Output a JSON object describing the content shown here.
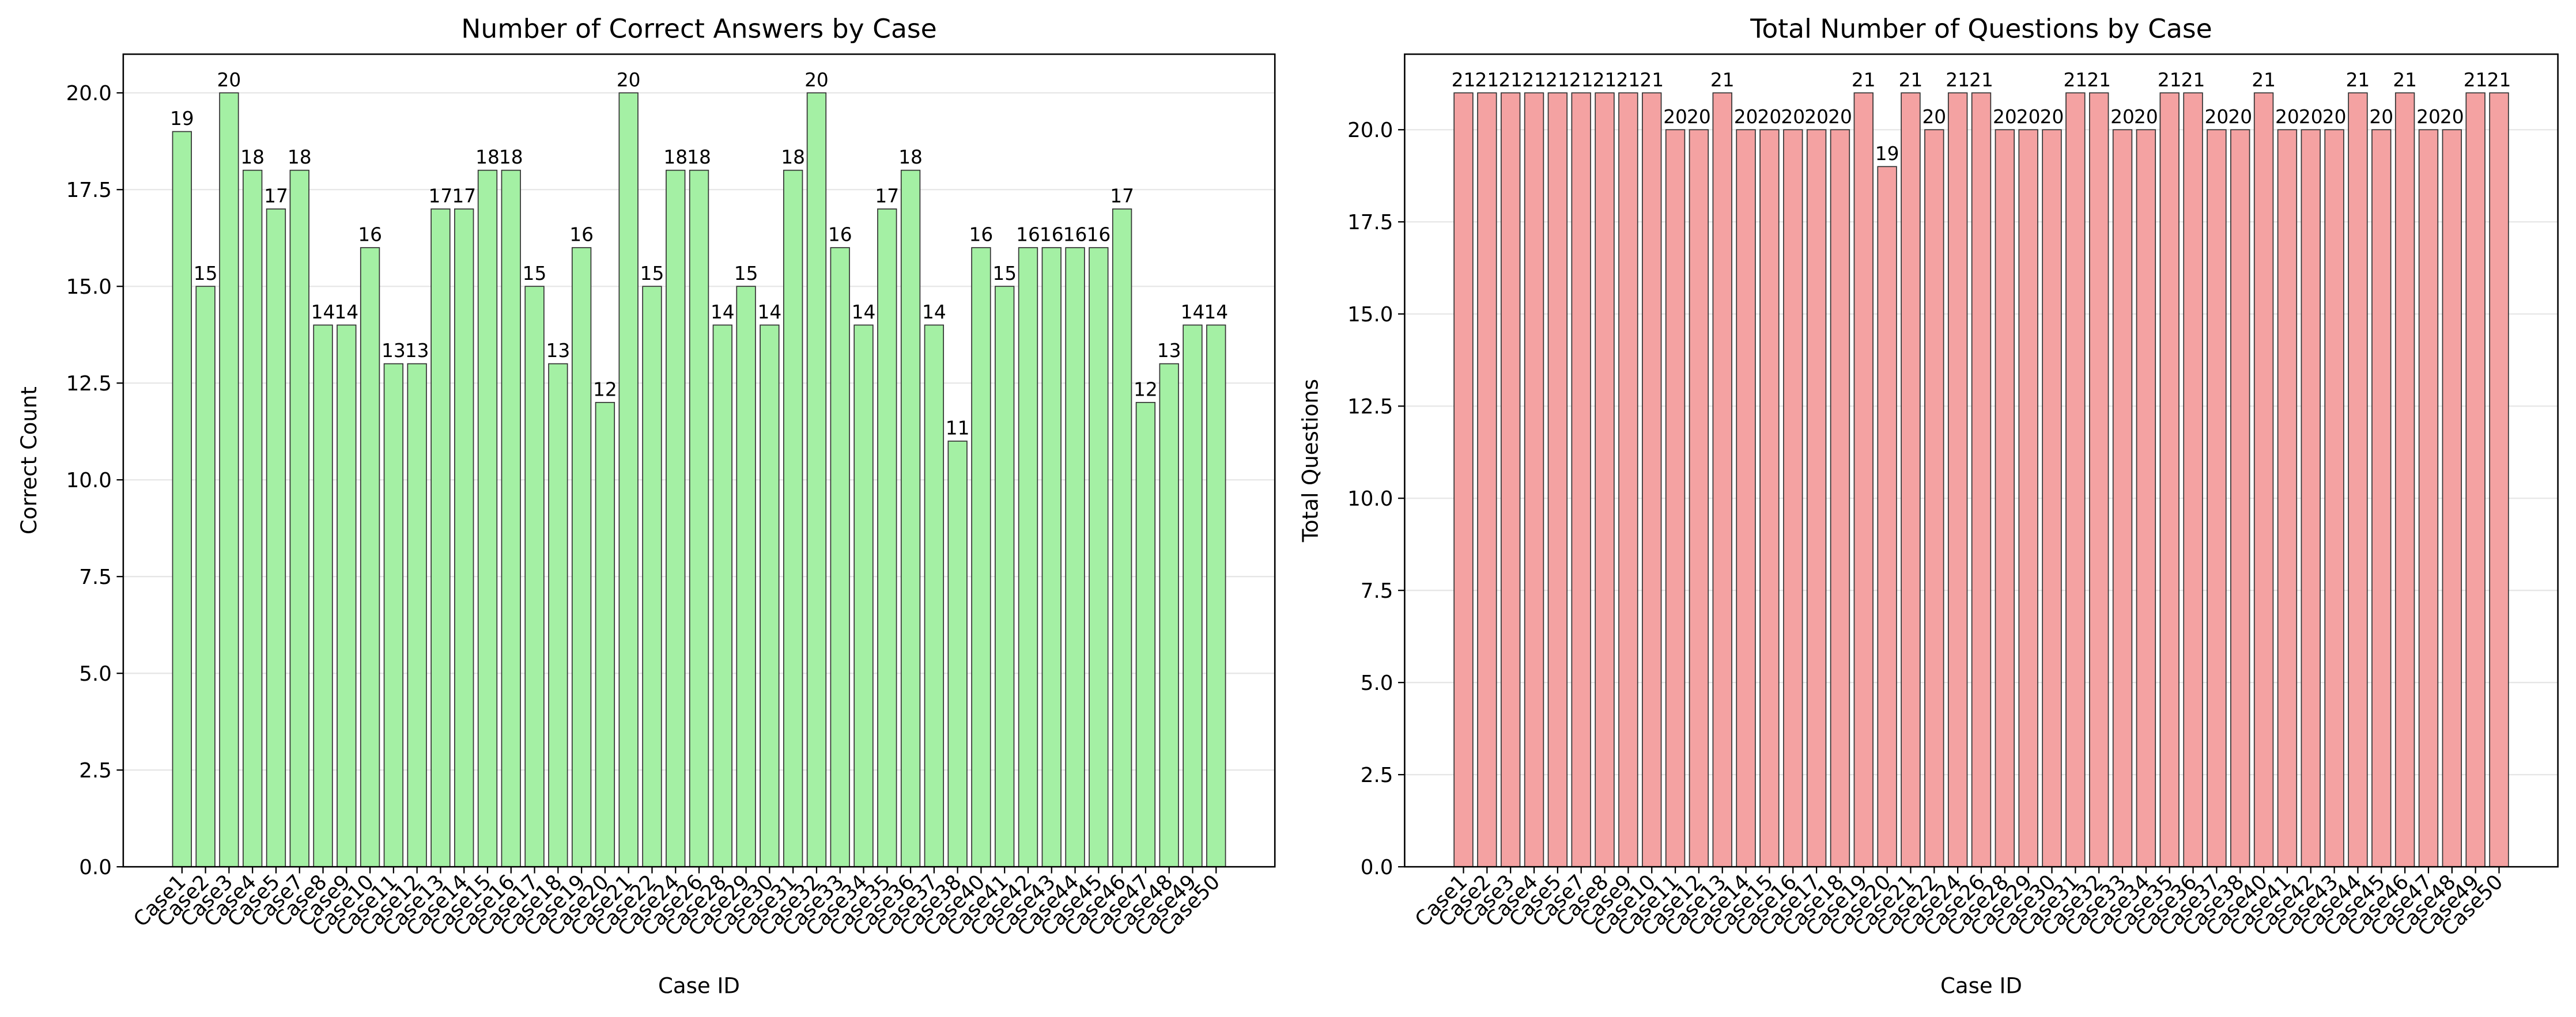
{
  "chart_data": [
    {
      "type": "bar",
      "title": "Number of Correct Answers by Case",
      "xlabel": "Case ID",
      "ylabel": "Correct Count",
      "categories": [
        "Case1",
        "Case2",
        "Case3",
        "Case4",
        "Case5",
        "Case7",
        "Case8",
        "Case9",
        "Case10",
        "Case11",
        "Case12",
        "Case13",
        "Case14",
        "Case15",
        "Case16",
        "Case17",
        "Case18",
        "Case19",
        "Case20",
        "Case21",
        "Case22",
        "Case24",
        "Case26",
        "Case28",
        "Case29",
        "Case30",
        "Case31",
        "Case32",
        "Case33",
        "Case34",
        "Case35",
        "Case36",
        "Case37",
        "Case38",
        "Case40",
        "Case41",
        "Case42",
        "Case43",
        "Case44",
        "Case45",
        "Case46",
        "Case47",
        "Case48",
        "Case49",
        "Case50"
      ],
      "values": [
        19,
        15,
        20,
        18,
        17,
        18,
        14,
        14,
        16,
        13,
        13,
        17,
        17,
        18,
        18,
        15,
        13,
        16,
        12,
        20,
        15,
        18,
        18,
        14,
        15,
        14,
        18,
        20,
        16,
        14,
        17,
        18,
        14,
        11,
        16,
        15,
        16,
        16,
        16,
        16,
        17,
        12,
        13,
        14,
        14
      ],
      "color": "#a4f0a4",
      "edgecolor": "#333333",
      "ylim": [
        0,
        21
      ],
      "yticks": [
        {
          "value": 0,
          "label": "0.0"
        },
        {
          "value": 2.5,
          "label": "2.5"
        },
        {
          "value": 5,
          "label": "5.0"
        },
        {
          "value": 7.5,
          "label": "7.5"
        },
        {
          "value": 10,
          "label": "10.0"
        },
        {
          "value": 12.5,
          "label": "12.5"
        },
        {
          "value": 15,
          "label": "15.0"
        },
        {
          "value": 17.5,
          "label": "17.5"
        },
        {
          "value": 20,
          "label": "20.0"
        }
      ],
      "grid": true
    },
    {
      "type": "bar",
      "title": "Total Number of Questions by Case",
      "xlabel": "Case ID",
      "ylabel": "Total Questions",
      "categories": [
        "Case1",
        "Case2",
        "Case3",
        "Case4",
        "Case5",
        "Case7",
        "Case8",
        "Case9",
        "Case10",
        "Case11",
        "Case12",
        "Case13",
        "Case14",
        "Case15",
        "Case16",
        "Case17",
        "Case18",
        "Case19",
        "Case20",
        "Case21",
        "Case22",
        "Case24",
        "Case26",
        "Case28",
        "Case29",
        "Case30",
        "Case31",
        "Case32",
        "Case33",
        "Case34",
        "Case35",
        "Case36",
        "Case37",
        "Case38",
        "Case40",
        "Case41",
        "Case42",
        "Case43",
        "Case44",
        "Case45",
        "Case46",
        "Case47",
        "Case48",
        "Case49",
        "Case50"
      ],
      "values": [
        21,
        21,
        21,
        21,
        21,
        21,
        21,
        21,
        21,
        20,
        20,
        21,
        20,
        20,
        20,
        20,
        20,
        21,
        19,
        21,
        20,
        21,
        21,
        20,
        20,
        20,
        21,
        21,
        20,
        20,
        21,
        21,
        20,
        20,
        21,
        20,
        20,
        20,
        21,
        20,
        21,
        20,
        20,
        21,
        21
      ],
      "color": "#f4a2a2",
      "edgecolor": "#333333",
      "ylim": [
        0,
        22.05
      ],
      "yticks": [
        {
          "value": 0,
          "label": "0.0"
        },
        {
          "value": 2.5,
          "label": "2.5"
        },
        {
          "value": 5,
          "label": "5.0"
        },
        {
          "value": 7.5,
          "label": "7.5"
        },
        {
          "value": 10,
          "label": "10.0"
        },
        {
          "value": 12.5,
          "label": "12.5"
        },
        {
          "value": 15,
          "label": "15.0"
        },
        {
          "value": 17.5,
          "label": "17.5"
        },
        {
          "value": 20,
          "label": "20.0"
        }
      ],
      "grid": true
    }
  ]
}
